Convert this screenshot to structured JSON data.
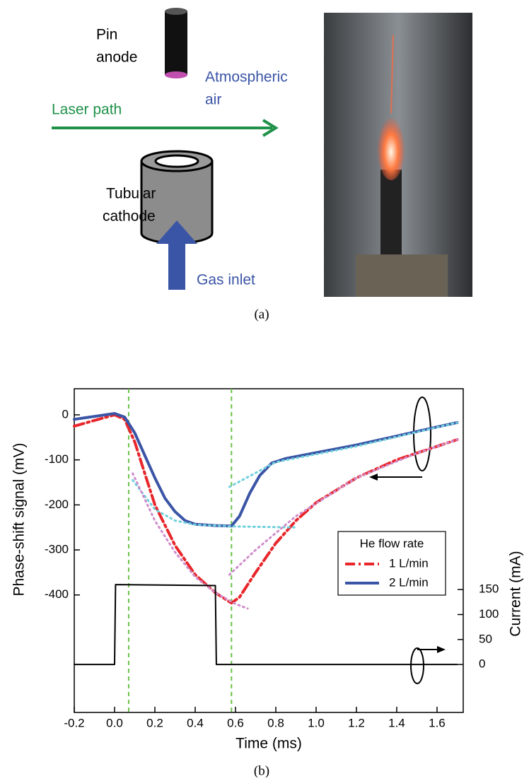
{
  "figure_a": {
    "pin_anode": [
      "Pin",
      "anode"
    ],
    "atmospheric_air": [
      "Atmospheric",
      "air"
    ],
    "laser_path": "Laser path",
    "tubular_cathode": [
      "Tubular",
      "cathode"
    ],
    "gas_inlet": "Gas inlet",
    "caption": "(a)"
  },
  "chart_data": {
    "type": "line",
    "xlabel": "Time (ms)",
    "ylabel": "Phase-shift signal (mV)",
    "y2label": "Current (mA)",
    "legend_title": "He flow rate",
    "legend": "right",
    "xlim": [
      -0.2,
      1.73
    ],
    "ylim": [
      -661,
      58
    ],
    "y2lim": [
      -96,
      552
    ],
    "xticks": [
      -0.2,
      {
        "value": 0,
        "label": "0.0"
      },
      0.2,
      0.4,
      0.6,
      0.8,
      {
        "value": 1,
        "label": "1.0"
      },
      1.2,
      1.4,
      1.6
    ],
    "yticks": [
      0,
      -100,
      -200,
      -300,
      -400
    ],
    "y2ticks": [
      0,
      50,
      100,
      150
    ],
    "vlines": [
      0.07,
      0.58
    ],
    "vline_color": "#6cc24a",
    "series": [
      {
        "name": "1 L/min",
        "color": "#e8262b",
        "dash": "dashdot",
        "x": [
          -0.2,
          0,
          0.05,
          0.1,
          0.15,
          0.2,
          0.3,
          0.4,
          0.5,
          0.58,
          0.62,
          0.7,
          0.8,
          0.9,
          1.0,
          1.2,
          1.4,
          1.6,
          1.7
        ],
        "values": [
          -25,
          0,
          -10,
          -60,
          -130,
          -200,
          -290,
          -355,
          -395,
          -418,
          -405,
          -350,
          -285,
          -235,
          -195,
          -140,
          -100,
          -70,
          -55
        ]
      },
      {
        "name": "2 L/min",
        "color": "#3b55a6",
        "dash": "solid",
        "x": [
          -0.2,
          0,
          0.05,
          0.1,
          0.15,
          0.2,
          0.25,
          0.3,
          0.35,
          0.4,
          0.5,
          0.58,
          0.62,
          0.67,
          0.72,
          0.78,
          0.85,
          1.0,
          1.2,
          1.4,
          1.6,
          1.7
        ],
        "values": [
          -10,
          3,
          -5,
          -40,
          -90,
          -140,
          -185,
          -215,
          -235,
          -243,
          -246,
          -247,
          -225,
          -175,
          -135,
          -107,
          -97,
          -84,
          -67,
          -47,
          -27,
          -17
        ]
      },
      {
        "color": "#6fd0dc",
        "dash": "dot",
        "x": [
          0.09,
          0.2,
          0.3,
          0.4,
          0.6,
          0.9
        ],
        "values": [
          -145,
          -210,
          -235,
          -244,
          -248,
          -250
        ]
      },
      {
        "color": "#6fd0dc",
        "dash": "dot",
        "x": [
          0.57,
          0.8,
          1.2,
          1.7
        ],
        "values": [
          -160,
          -105,
          -70,
          -17
        ]
      },
      {
        "color": "#cf8ccc",
        "dash": "dot",
        "x": [
          0.09,
          0.2,
          0.3,
          0.4,
          0.5,
          0.6,
          0.66
        ],
        "values": [
          -130,
          -235,
          -305,
          -360,
          -395,
          -420,
          -430
        ]
      },
      {
        "color": "#cf8ccc",
        "dash": "dot",
        "x": [
          0.57,
          0.7,
          0.9,
          1.2,
          1.5,
          1.7
        ],
        "values": [
          -355,
          -300,
          -225,
          -140,
          -85,
          -55
        ]
      },
      {
        "color": "#000000",
        "dash": "solid",
        "axis": "y2",
        "x": [
          -0.2,
          0,
          0.005,
          0.5,
          0.505,
          1.7
        ],
        "values": [
          0,
          0,
          160,
          158,
          0,
          0
        ]
      }
    ]
  },
  "caption_b": "(b)"
}
